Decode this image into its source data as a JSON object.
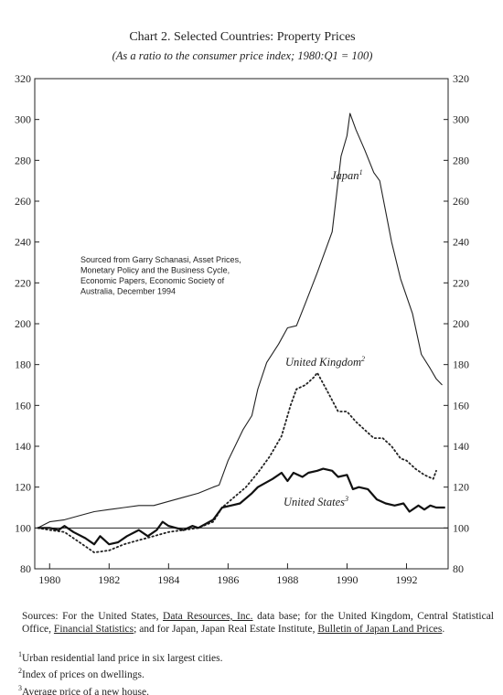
{
  "chart_data": {
    "type": "line",
    "title": "Chart 2.  Selected Countries: Property Prices",
    "subtitle": "(As a ratio to the consumer price index; 1980:Q1 = 100)",
    "xlim": [
      1979.5,
      1993.4
    ],
    "xticks": [
      1980,
      1982,
      1984,
      1986,
      1988,
      1990,
      1992
    ],
    "ylim": [
      80,
      320
    ],
    "yticks": [
      80,
      100,
      120,
      140,
      160,
      180,
      200,
      220,
      240,
      260,
      280,
      300,
      320
    ],
    "reference_line": 100,
    "note_box": [
      "Sourced from Garry Schanasi, Asset Prices,",
      "Monetary Policy and the Business Cycle,",
      "Economic Papers, Economic Society of",
      "Australia, December 1994"
    ],
    "series": [
      {
        "name": "Japan",
        "note": "1",
        "color": "#222",
        "style": "solid",
        "width": 1.1,
        "x": [
          1979.6,
          1980,
          1980.5,
          1981,
          1981.5,
          1982,
          1982.5,
          1983,
          1983.5,
          1984,
          1984.5,
          1985,
          1985.5,
          1985.7,
          1986,
          1986.5,
          1986.8,
          1987,
          1987.3,
          1987.7,
          1988,
          1988.3,
          1988.6,
          1989,
          1989.5,
          1989.8,
          1990,
          1990.1,
          1990.3,
          1990.6,
          1990.9,
          1991.1,
          1991.5,
          1991.8,
          1992.2,
          1992.5,
          1992.8,
          1993,
          1993.2
        ],
        "values": [
          100,
          103,
          104,
          106,
          108,
          109,
          110,
          111,
          111,
          113,
          115,
          117,
          120,
          121,
          133,
          148,
          155,
          168,
          181,
          190,
          198,
          199,
          210,
          225,
          245,
          282,
          292,
          303,
          295,
          285,
          274,
          270,
          240,
          222,
          205,
          185,
          178,
          173,
          170
        ]
      },
      {
        "name": "United Kingdom",
        "note": "2",
        "color": "#222",
        "style": "dotted",
        "width": 1.8,
        "x": [
          1979.6,
          1980,
          1980.5,
          1980.8,
          1981.2,
          1981.5,
          1982,
          1982.5,
          1983,
          1983.5,
          1984,
          1984.5,
          1985,
          1985.5,
          1985.8,
          1986.2,
          1986.6,
          1987,
          1987.4,
          1987.8,
          1988.1,
          1988.3,
          1988.6,
          1988.9,
          1989,
          1989.3,
          1989.7,
          1990,
          1990.3,
          1990.6,
          1990.9,
          1991.2,
          1991.5,
          1991.8,
          1992,
          1992.3,
          1992.6,
          1992.9,
          1993
        ],
        "values": [
          100,
          99,
          98,
          95,
          91,
          88,
          89,
          92,
          94,
          96,
          98,
          99,
          100,
          103,
          110,
          115,
          120,
          127,
          135,
          145,
          160,
          168,
          170,
          174,
          176,
          168,
          157,
          157,
          152,
          148,
          144,
          144,
          140,
          134,
          133,
          129,
          126,
          124,
          128
        ]
      },
      {
        "name": "United States",
        "note": "3",
        "color": "#111",
        "style": "solid",
        "width": 2.2,
        "x": [
          1979.6,
          1980,
          1980.3,
          1980.5,
          1980.8,
          1981.2,
          1981.5,
          1981.7,
          1982,
          1982.3,
          1982.6,
          1983,
          1983.3,
          1983.6,
          1983.8,
          1984,
          1984.5,
          1984.8,
          1985,
          1985.5,
          1985.8,
          1986.1,
          1986.4,
          1986.8,
          1987,
          1987.5,
          1987.8,
          1988,
          1988.2,
          1988.5,
          1988.7,
          1989,
          1989.2,
          1989.5,
          1989.7,
          1990,
          1990.2,
          1990.4,
          1990.7,
          1991,
          1991.3,
          1991.6,
          1991.9,
          1992.1,
          1992.4,
          1992.6,
          1992.8,
          1993,
          1993.3
        ],
        "values": [
          100,
          100,
          99,
          101,
          98,
          95,
          92,
          96,
          92,
          93,
          96,
          99,
          96,
          99,
          103,
          101,
          99,
          101,
          100,
          104,
          110,
          111,
          112,
          117,
          120,
          124,
          127,
          123,
          127,
          125,
          127,
          128,
          129,
          128,
          125,
          126,
          119,
          120,
          119,
          114,
          112,
          111,
          112,
          108,
          111,
          109,
          111,
          110,
          110
        ]
      }
    ]
  },
  "footer": {
    "sources": [
      {
        "text": "Sources: For the United States, ",
        "underline": false
      },
      {
        "text": "Data Resources, Inc.",
        "underline": true
      },
      {
        "text": " data base; for the United Kingdom, Central Statistical Office, ",
        "underline": false
      },
      {
        "text": "Financial Statistics",
        "underline": true
      },
      {
        "text": ";  and for Japan, Japan Real Estate Institute, ",
        "underline": false
      },
      {
        "text": "Bulletin of Japan Land Prices",
        "underline": true
      },
      {
        "text": ".",
        "underline": false
      }
    ],
    "footnotes": [
      {
        "marker": "1",
        "text": "Urban residential land price in six largest cities."
      },
      {
        "marker": "2",
        "text": "Index of prices on dwellings."
      },
      {
        "marker": "3",
        "text": "Average price of a new house."
      }
    ]
  }
}
